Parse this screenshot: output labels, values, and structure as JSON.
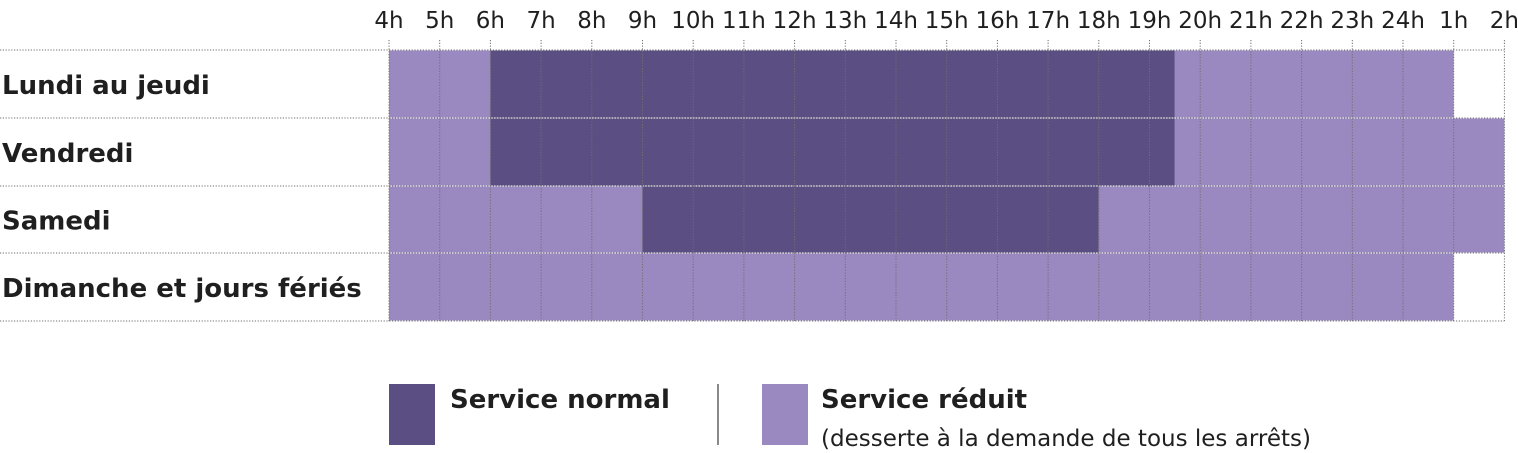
{
  "chart_data": {
    "type": "heatmap",
    "title": "",
    "xlabel": "",
    "ylabel": "",
    "hours": [
      "4h",
      "5h",
      "6h",
      "7h",
      "8h",
      "9h",
      "10h",
      "11h",
      "12h",
      "13h",
      "14h",
      "15h",
      "16h",
      "17h",
      "18h",
      "19h",
      "20h",
      "21h",
      "22h",
      "23h",
      "24h",
      "1h",
      "2h"
    ],
    "days": [
      "Lundi au jeudi",
      "Vendredi",
      "Samedi",
      "Dimanche et jours fériés"
    ],
    "series": [
      {
        "day": "Lundi au jeudi",
        "periods": [
          {
            "service": "reduit",
            "start": 4,
            "end": 6
          },
          {
            "service": "normal",
            "start": 6,
            "end": 19.5
          },
          {
            "service": "reduit",
            "start": 19.5,
            "end": 25
          }
        ]
      },
      {
        "day": "Vendredi",
        "periods": [
          {
            "service": "reduit",
            "start": 4,
            "end": 6
          },
          {
            "service": "normal",
            "start": 6,
            "end": 19.5
          },
          {
            "service": "reduit",
            "start": 19.5,
            "end": 26
          }
        ]
      },
      {
        "day": "Samedi",
        "periods": [
          {
            "service": "reduit",
            "start": 4,
            "end": 9
          },
          {
            "service": "normal",
            "start": 9,
            "end": 18
          },
          {
            "service": "reduit",
            "start": 18,
            "end": 26
          }
        ]
      },
      {
        "day": "Dimanche et jours fériés",
        "periods": [
          {
            "service": "reduit",
            "start": 4,
            "end": 25
          }
        ]
      }
    ],
    "x_range": [
      4,
      26
    ],
    "grid": true,
    "legend_placement": "bottom",
    "legend": [
      {
        "key": "normal",
        "title": "Service normal",
        "subtitle": ""
      },
      {
        "key": "reduit",
        "title": "Service réduit",
        "subtitle": "(desserte à la demande de tous les arrêts)"
      }
    ],
    "colors": {
      "normal": "#5b4e83",
      "reduit": "#9a88c0",
      "grid": "#6f6f6f",
      "text": "#1f1f1f"
    }
  }
}
